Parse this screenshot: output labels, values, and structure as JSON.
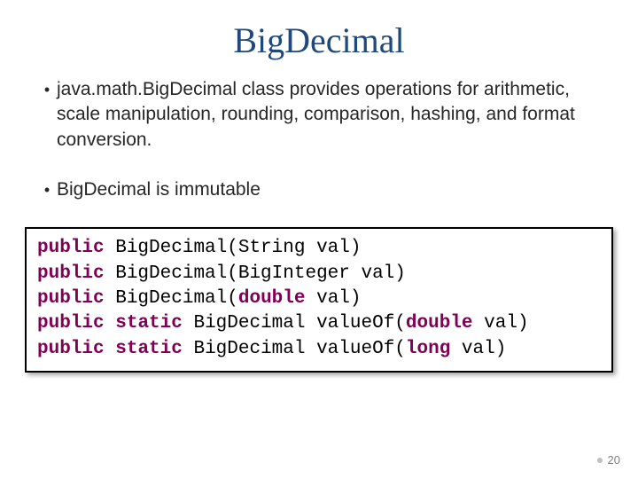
{
  "title": "BigDecimal",
  "bullets": [
    "java.math.BigDecimal class provides operations for arithmetic, scale manipulation, rounding, comparison, hashing, and format conversion.",
    "BigDecimal is immutable"
  ],
  "code": {
    "keyword_color": "#7f0055",
    "text_color": "#000000",
    "border_color": "#000000",
    "lines": [
      [
        {
          "t": "public",
          "kw": true
        },
        {
          "t": " BigDecimal(String val)"
        }
      ],
      [
        {
          "t": "public",
          "kw": true
        },
        {
          "t": " BigDecimal(BigInteger val)"
        }
      ],
      [
        {
          "t": "public",
          "kw": true
        },
        {
          "t": " BigDecimal("
        },
        {
          "t": "double",
          "kw": true
        },
        {
          "t": " val)"
        }
      ],
      [
        {
          "t": "public",
          "kw": true
        },
        {
          "t": " "
        },
        {
          "t": "static",
          "kw": true
        },
        {
          "t": " BigDecimal valueOf("
        },
        {
          "t": "double",
          "kw": true
        },
        {
          "t": " val)"
        }
      ],
      [
        {
          "t": "public",
          "kw": true
        },
        {
          "t": " "
        },
        {
          "t": "static",
          "kw": true
        },
        {
          "t": " BigDecimal valueOf("
        },
        {
          "t": "long",
          "kw": true
        },
        {
          "t": " val)"
        }
      ]
    ]
  },
  "page_number": "20",
  "colors": {
    "title": "#1f497d",
    "body_text": "#262626",
    "background": "#ffffff",
    "page_num": "#808080"
  }
}
